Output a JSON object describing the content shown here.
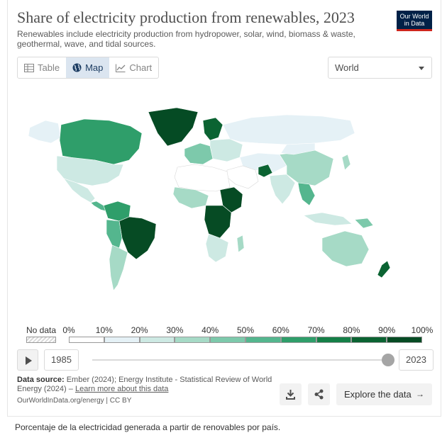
{
  "header": {
    "title": "Share of electricity production from renewables, 2023",
    "subtitle": "Renewables include electricity production from hydropower, solar, wind, biomass & waste, geothermal, wave, and tidal sources.",
    "logo_line1": "Our World",
    "logo_line2": "in Data"
  },
  "tabs": [
    {
      "label": "Table",
      "icon": "table-icon",
      "active": false
    },
    {
      "label": "Map",
      "icon": "globe-icon",
      "active": true
    },
    {
      "label": "Chart",
      "icon": "line-chart-icon",
      "active": false
    }
  ],
  "region_select": {
    "value": "World"
  },
  "legend": {
    "no_data_label": "No data",
    "ticks": [
      "0%",
      "10%",
      "20%",
      "30%",
      "40%",
      "50%",
      "60%",
      "70%",
      "80%",
      "90%",
      "100%"
    ],
    "colors": [
      "#ffffff",
      "#e5f1f6",
      "#cde9e3",
      "#a6dac6",
      "#7dc9ab",
      "#54b68e",
      "#2f9e6a",
      "#157f47",
      "#0b6332",
      "#064b24"
    ]
  },
  "timeline": {
    "start_year": "1985",
    "end_year": "2023",
    "position": 1.0
  },
  "source": {
    "label": "Data source:",
    "text": "Ember (2024); Energy Institute - Statistical Review of World Energy (2024) –",
    "link": "Learn more about this data",
    "url": "OurWorldInData.org/energy | CC BY"
  },
  "actions": {
    "download_icon": "download-icon",
    "share_icon": "share-icon",
    "explore_label": "Explore the data",
    "explore_arrow": "→"
  },
  "caption": "Porcentaje de la electricidad generada a partir de renovables por país.",
  "map": {
    "regions": [
      {
        "name": "Canada",
        "share": 67
      },
      {
        "name": "United States",
        "share": 22
      },
      {
        "name": "Mexico",
        "share": 23
      },
      {
        "name": "Brazil",
        "share": 89
      },
      {
        "name": "Colombia",
        "share": 72
      },
      {
        "name": "Argentina",
        "share": 33
      },
      {
        "name": "Chile",
        "share": 63
      },
      {
        "name": "Russia",
        "share": 19
      },
      {
        "name": "China",
        "share": 31
      },
      {
        "name": "India",
        "share": 20
      },
      {
        "name": "Australia",
        "share": 35
      },
      {
        "name": "Ethiopia",
        "share": 99
      },
      {
        "name": "Congo DR",
        "share": 99
      },
      {
        "name": "South Africa",
        "share": 10
      },
      {
        "name": "Norway",
        "share": 98
      },
      {
        "name": "Sweden",
        "share": 69
      },
      {
        "name": "Afghanistan",
        "share": 80
      },
      {
        "name": "Saudi Arabia",
        "share": 1
      }
    ]
  }
}
